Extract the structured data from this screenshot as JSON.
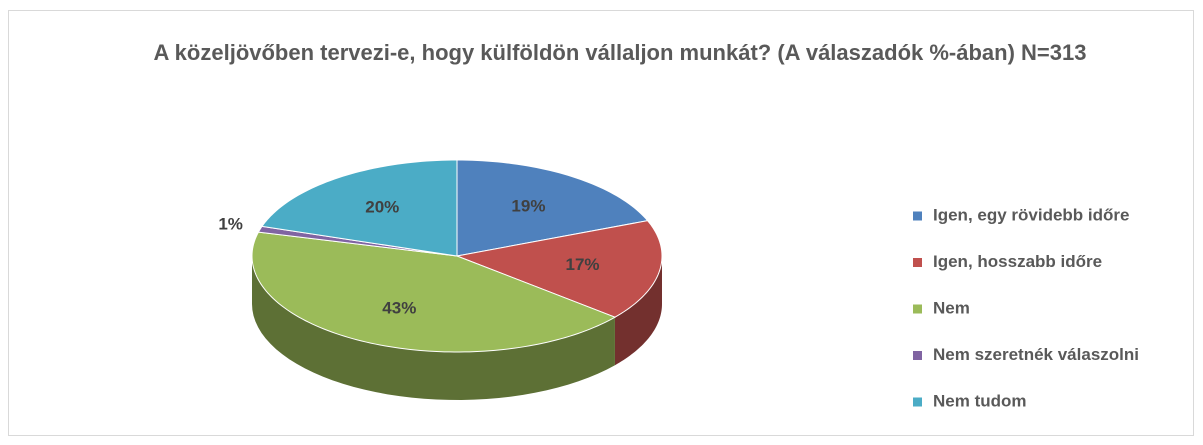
{
  "chart_data": {
    "type": "pie",
    "title": "A közeljövőben tervezi-e, hogy külföldön vállaljon munkát? (A válaszadók %-ában) N=313",
    "categories": [
      "Igen, egy rövidebb időre",
      "Igen, hosszabb időre",
      "Nem",
      "Nem szeretnék válaszolni",
      "Nem tudom"
    ],
    "values": [
      19,
      17,
      43,
      1,
      20
    ],
    "value_labels": [
      "19%",
      "17%",
      "43%",
      "1%",
      "20%"
    ],
    "colors": [
      "#4f81bd",
      "#c0504d",
      "#9bbb59",
      "#8064a2",
      "#4bacc6"
    ],
    "legend": "right"
  }
}
